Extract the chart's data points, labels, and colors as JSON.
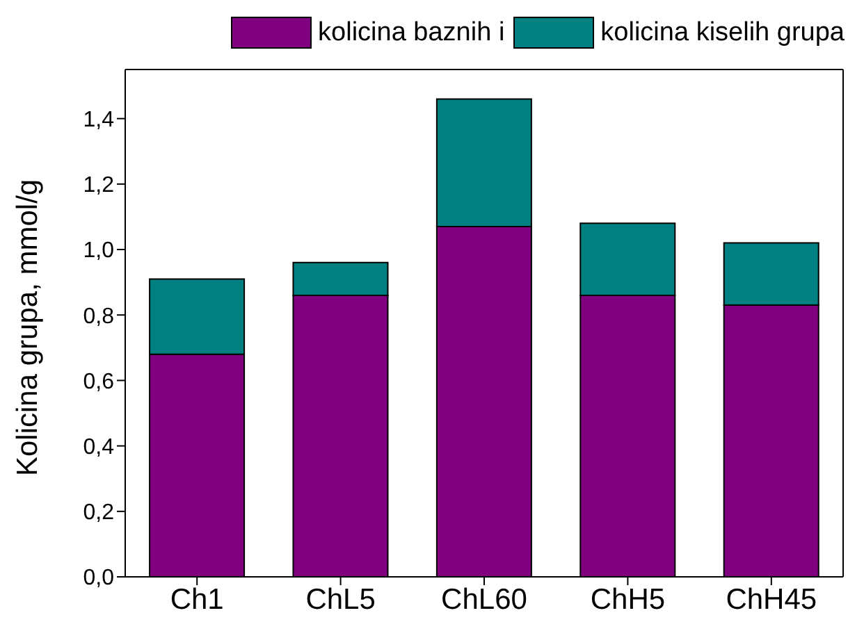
{
  "chart_data": {
    "type": "bar",
    "stacked": true,
    "ylabel": "Kolicina grupa, mmol/g",
    "categories": [
      "Ch1",
      "ChL5",
      "ChL60",
      "ChH5",
      "ChH45"
    ],
    "series": [
      {
        "name": "kolicina baznih i",
        "color": "#800080",
        "values": [
          0.68,
          0.86,
          1.07,
          0.86,
          0.83
        ]
      },
      {
        "name": "kolicina kiselih grupa",
        "color": "#008080",
        "values": [
          0.23,
          0.1,
          0.39,
          0.22,
          0.19
        ]
      }
    ],
    "ylim": [
      0,
      1.55
    ],
    "yticks": [
      {
        "value": 0,
        "label": "0,0"
      },
      {
        "value": 0.2,
        "label": "0,2"
      },
      {
        "value": 0.4,
        "label": "0,4"
      },
      {
        "value": 0.6,
        "label": "0,6"
      },
      {
        "value": 0.8,
        "label": "0,8"
      },
      {
        "value": 1.0,
        "label": "1,0"
      },
      {
        "value": 1.2,
        "label": "1,2"
      },
      {
        "value": 1.4,
        "label": "1,4"
      }
    ],
    "grid": false,
    "legend": "top"
  }
}
